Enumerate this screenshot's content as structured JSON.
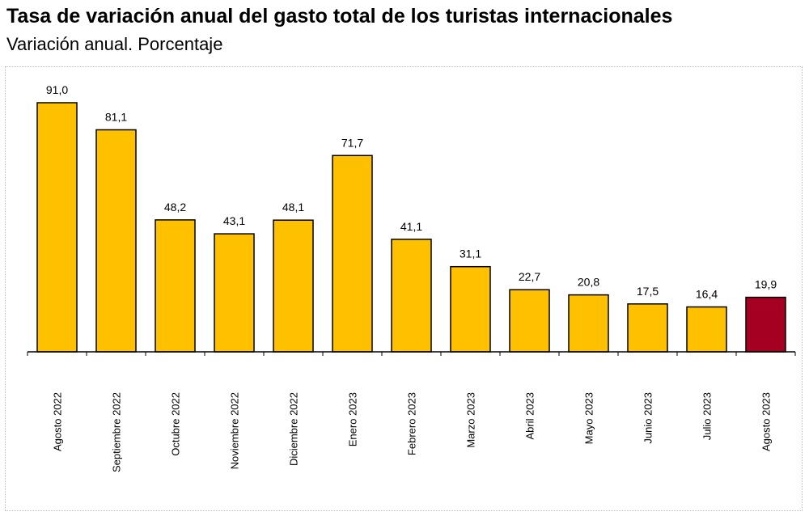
{
  "title": "Tasa de variación anual del gasto total de los turistas internacionales",
  "subtitle": "Variación anual. Porcentaje",
  "colors": {
    "bar": "#FFC000",
    "highlight": "#A50021",
    "stroke": "#000000"
  },
  "chart_data": {
    "type": "bar",
    "categories": [
      "Agosto 2022",
      "Septiembre 2022",
      "Octubre 2022",
      "Noviembre 2022",
      "Diciembre 2022",
      "Enero 2023",
      "Febrero 2023",
      "Marzo 2023",
      "Abril 2023",
      "Mayo 2023",
      "Junio 2023",
      "Julio 2023",
      "Agosto 2023"
    ],
    "values": [
      91.0,
      81.1,
      48.2,
      43.1,
      48.1,
      71.7,
      41.1,
      31.1,
      22.7,
      20.8,
      17.5,
      16.4,
      19.9
    ],
    "data_labels": [
      "91,0",
      "81,1",
      "48,2",
      "43,1",
      "48,1",
      "71,7",
      "41,1",
      "31,1",
      "22,7",
      "20,8",
      "17,5",
      "16,4",
      "19,9"
    ],
    "highlight_index": 12,
    "ylim": [
      0,
      91.0
    ],
    "grid": false,
    "legend": "none"
  }
}
